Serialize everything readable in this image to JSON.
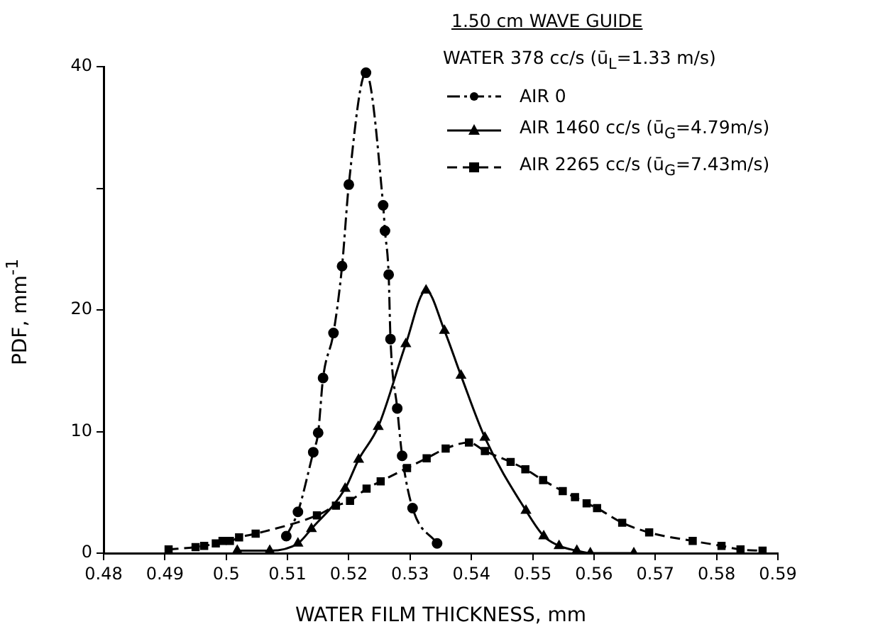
{
  "chart_data": {
    "type": "line",
    "xlabel": "WATER FILM THICKNESS, mm",
    "ylabel": "PDF, mm$^{-1}$",
    "legend_title": "1.50 cm WAVE GUIDE",
    "annotations": [
      "WATER 378 cc/s (ū$_{L}$=1.33 m/s)"
    ],
    "xlim": [
      0.48,
      0.59
    ],
    "xticks": [
      0.48,
      0.49,
      0.5,
      0.51,
      0.52,
      0.53,
      0.54,
      0.55,
      0.56,
      0.57,
      0.58,
      0.59
    ],
    "ylim": [
      0,
      40
    ],
    "yticks": [
      0,
      10,
      20,
      {
        "value": 30,
        "label": null
      },
      40
    ],
    "grid": false,
    "legend": "top right",
    "series": [
      {
        "name": "AIR 0",
        "color": "#000000",
        "marker": "circle",
        "line_style": "dashdot",
        "x": [
          0.5098,
          0.5117,
          0.5142,
          0.515,
          0.5158,
          0.5175,
          0.5189,
          0.52,
          0.5228,
          0.5256,
          0.5259,
          0.5265,
          0.5268,
          0.5279,
          0.5287,
          0.5304,
          0.5344
        ],
        "values": [
          1.4,
          3.4,
          8.3,
          9.9,
          14.4,
          18.1,
          23.6,
          30.3,
          39.5,
          28.6,
          26.5,
          22.9,
          17.6,
          11.9,
          8.0,
          3.7,
          0.8
        ]
      },
      {
        "name": "AIR 1460 cc/s (ū$_{G}$=4.79m/s)",
        "color": "#000000",
        "marker": "triangle",
        "line_style": "solid",
        "x": [
          0.5018,
          0.5071,
          0.5117,
          0.5139,
          0.5194,
          0.5216,
          0.5248,
          0.5293,
          0.5326,
          0.5356,
          0.5383,
          0.5422,
          0.5489,
          0.5518,
          0.5543,
          0.5572,
          0.5594,
          0.5665
        ],
        "values": [
          0.2,
          0.2,
          0.8,
          2.0,
          5.3,
          7.7,
          10.4,
          17.2,
          21.6,
          18.3,
          14.6,
          9.5,
          3.5,
          1.4,
          0.6,
          0.2,
          0,
          0
        ]
      },
      {
        "name": "AIR 2265 cc/s (ū$_{G}$=7.43m/s)",
        "color": "#000000",
        "marker": "square",
        "line_style": "dashed",
        "x": [
          0.4906,
          0.495,
          0.4964,
          0.4983,
          0.4994,
          0.5006,
          0.5021,
          0.5048,
          0.5148,
          0.5179,
          0.5202,
          0.5229,
          0.5252,
          0.5295,
          0.5327,
          0.5358,
          0.5396,
          0.5422,
          0.5464,
          0.5488,
          0.5517,
          0.5549,
          0.5569,
          0.5588,
          0.5605,
          0.5646,
          0.569,
          0.5761,
          0.5808,
          0.5839,
          0.5875
        ],
        "values": [
          0.3,
          0.5,
          0.6,
          0.8,
          1.0,
          1.0,
          1.3,
          1.6,
          3.1,
          3.9,
          4.3,
          5.3,
          5.9,
          7.0,
          7.8,
          8.6,
          9.1,
          8.4,
          7.5,
          6.9,
          6.0,
          5.1,
          4.6,
          4.1,
          3.7,
          2.5,
          1.7,
          1.0,
          0.6,
          0.3,
          0.2
        ]
      }
    ]
  }
}
